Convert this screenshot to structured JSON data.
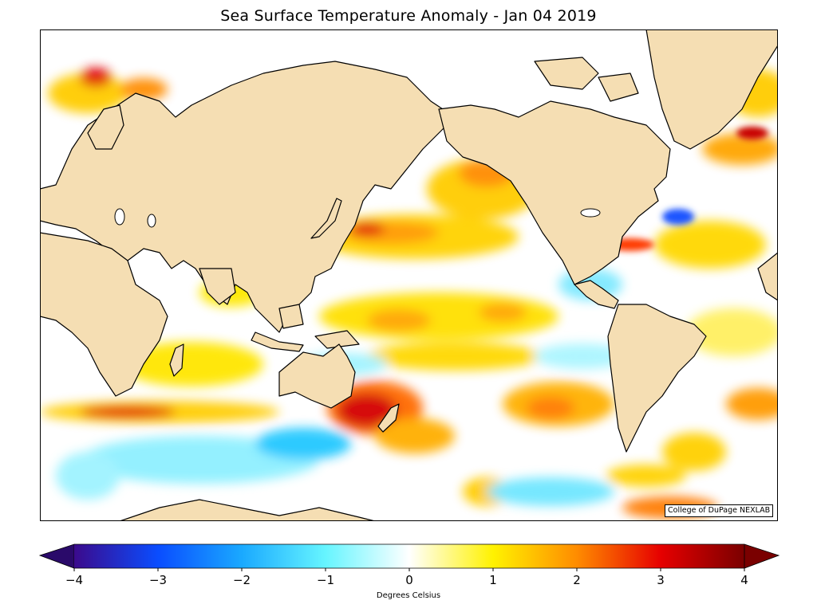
{
  "title": "Sea Surface Temperature Anomaly - Jan 04 2019",
  "credit": "College of DuPage NEXLAB",
  "colorbar": {
    "label": "Degrees Celsius",
    "min": -4,
    "max": 4,
    "ticks": [
      "−4",
      "−3",
      "−2",
      "−1",
      "0",
      "1",
      "2",
      "3",
      "4"
    ],
    "colors": {
      "minus4": "#3b0a8c",
      "minus3": "#0a4dff",
      "minus2": "#1aa9ff",
      "minus1": "#66f5ff",
      "zero": "#ffffff",
      "plus1": "#fff200",
      "plus2": "#ff8c00",
      "plus3": "#e60000",
      "plus4": "#7a0000"
    }
  },
  "map": {
    "land_color": "#f5deb3",
    "projection": "Miller cylindrical, Pacific-centered",
    "coastline_color": "#000000",
    "border_color": "#888888"
  }
}
